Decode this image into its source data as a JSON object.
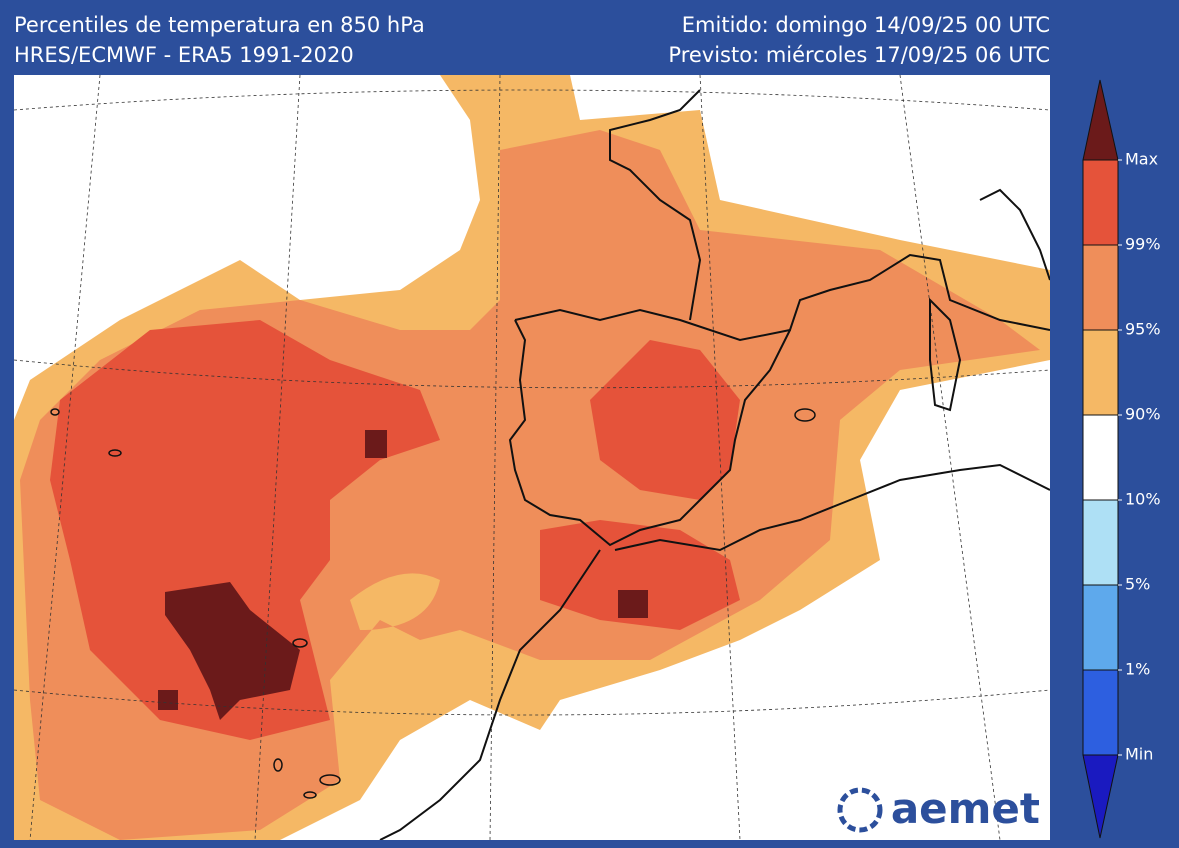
{
  "header": {
    "title": "Percentiles de temperatura en 850 hPa",
    "subtitle": "HRES/ECMWF - ERA5 1991-2020",
    "issued": "Emitido: domingo 14/09/25 00 UTC",
    "forecast": "Previsto: miércoles 17/09/25 06 UTC"
  },
  "legend": {
    "labels": [
      "Max",
      "99%",
      "95%",
      "90%",
      "10%",
      "5%",
      "1%",
      "Min"
    ]
  },
  "logo": "aemet"
}
